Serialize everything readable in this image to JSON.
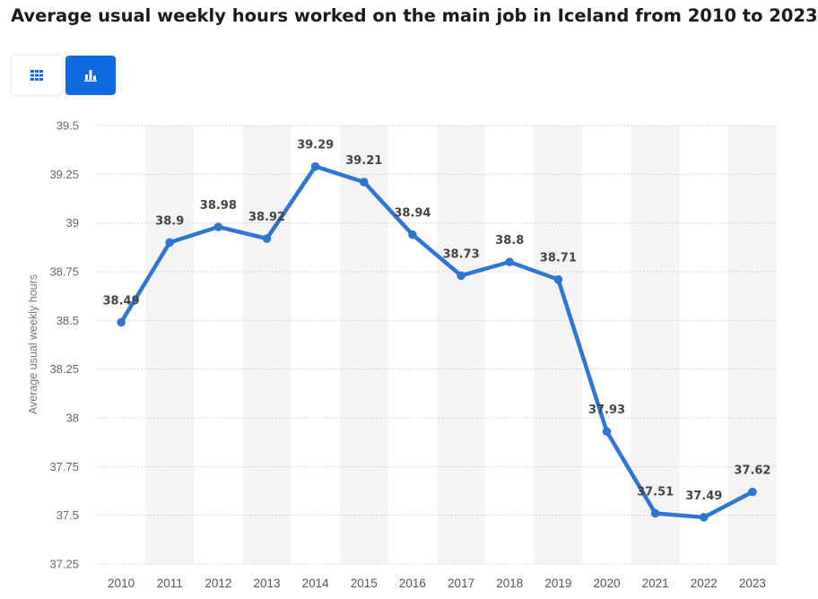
{
  "page": {
    "title": "Average usual weekly hours worked on the main job in Iceland from 2010 to 2023"
  },
  "toolbar": {
    "table_view_icon": "grid-icon",
    "chart_view_icon": "bar-chart-icon",
    "active_view": "chart"
  },
  "colors": {
    "line": "#2f76d2",
    "band": "#f4f4f4",
    "grid": "#cccccc",
    "active_button": "#0f6adf"
  },
  "chart_data": {
    "type": "line",
    "title": "Average usual weekly hours worked on the main job in Iceland from 2010 to 2023",
    "xlabel": "",
    "ylabel": "Average usual weekly hours",
    "categories": [
      "2010",
      "2011",
      "2012",
      "2013",
      "2014",
      "2015",
      "2016",
      "2017",
      "2018",
      "2019",
      "2020",
      "2021",
      "2022",
      "2023"
    ],
    "series": [
      {
        "values": [
          38.49,
          38.9,
          38.98,
          38.92,
          39.29,
          39.21,
          38.94,
          38.73,
          38.8,
          38.71,
          37.93,
          37.51,
          37.49,
          37.62
        ]
      }
    ],
    "data_labels": [
      "38.49",
      "38.9",
      "38.98",
      "38.92",
      "39.29",
      "39.21",
      "38.94",
      "38.73",
      "38.8",
      "38.71",
      "37.93",
      "37.51",
      "37.49",
      "37.62"
    ],
    "ylim": [
      37.25,
      39.5
    ],
    "yticks": [
      39.5,
      39.25,
      39,
      38.75,
      38.5,
      38.25,
      38,
      37.75,
      37.5,
      37.25
    ],
    "ytick_labels": [
      "39.5",
      "39.25",
      "39",
      "38.75",
      "38.5",
      "38.25",
      "38",
      "37.75",
      "37.5",
      "37.25"
    ],
    "grid": true,
    "grid_style": "dotted",
    "alternating_column_bands": true,
    "legend": "none"
  }
}
